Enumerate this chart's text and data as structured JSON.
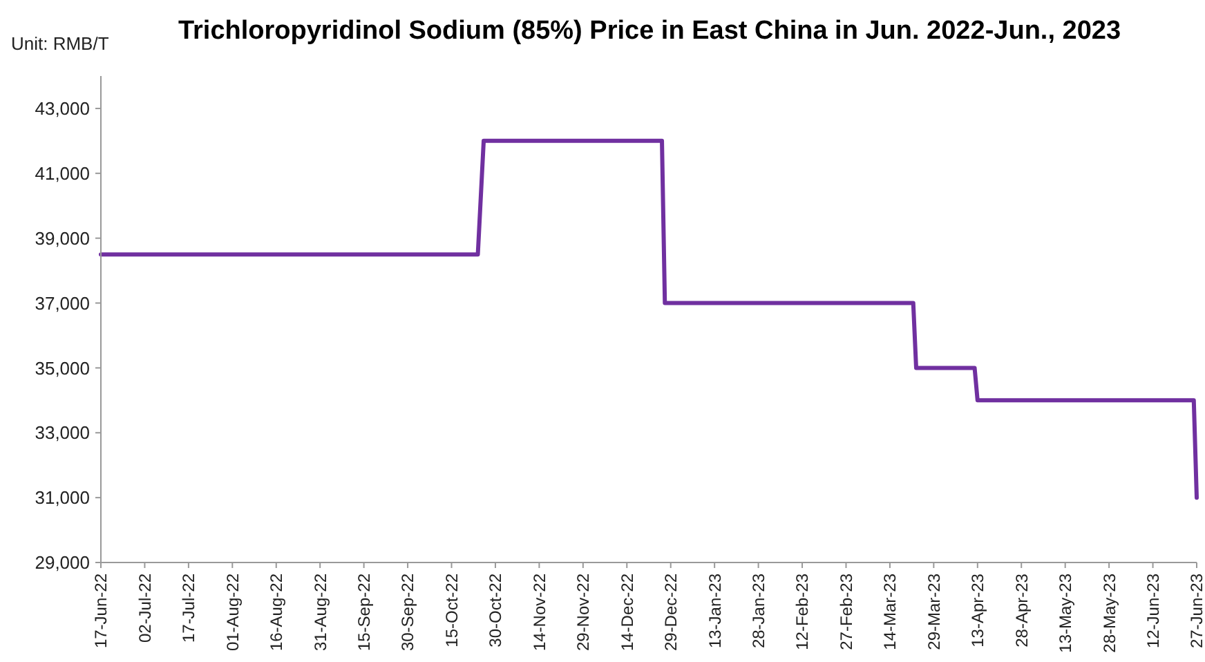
{
  "chart_data": {
    "type": "line",
    "title": "Trichloropyridinol Sodium (85%) Price in East China in Jun. 2022-Jun., 2023",
    "ylabel": "Unit: RMB/T",
    "x": [
      "2022-06-17",
      "2022-10-24",
      "2022-10-26",
      "2022-12-26",
      "2022-12-27",
      "2023-03-22",
      "2023-03-23",
      "2023-04-12",
      "2023-04-13",
      "2023-06-26",
      "2023-06-27"
    ],
    "series": [
      {
        "color": "#7030a0",
        "values": [
          38500,
          38500,
          42000,
          42000,
          37000,
          37000,
          35000,
          35000,
          34000,
          34000,
          31000
        ]
      }
    ],
    "xlim": [
      "2022-06-17",
      "2023-06-27"
    ],
    "xticks": [
      {
        "value": "2022-06-17",
        "label": "17-Jun-22"
      },
      {
        "value": "2022-07-02",
        "label": "02-Jul-22"
      },
      {
        "value": "2022-07-17",
        "label": "17-Jul-22"
      },
      {
        "value": "2022-08-01",
        "label": "01-Aug-22"
      },
      {
        "value": "2022-08-16",
        "label": "16-Aug-22"
      },
      {
        "value": "2022-08-31",
        "label": "31-Aug-22"
      },
      {
        "value": "2022-09-15",
        "label": "15-Sep-22"
      },
      {
        "value": "2022-09-30",
        "label": "30-Sep-22"
      },
      {
        "value": "2022-10-15",
        "label": "15-Oct-22"
      },
      {
        "value": "2022-10-30",
        "label": "30-Oct-22"
      },
      {
        "value": "2022-11-14",
        "label": "14-Nov-22"
      },
      {
        "value": "2022-11-29",
        "label": "29-Nov-22"
      },
      {
        "value": "2022-12-14",
        "label": "14-Dec-22"
      },
      {
        "value": "2022-12-29",
        "label": "29-Dec-22"
      },
      {
        "value": "2023-01-13",
        "label": "13-Jan-23"
      },
      {
        "value": "2023-01-28",
        "label": "28-Jan-23"
      },
      {
        "value": "2023-02-12",
        "label": "12-Feb-23"
      },
      {
        "value": "2023-02-27",
        "label": "27-Feb-23"
      },
      {
        "value": "2023-03-14",
        "label": "14-Mar-23"
      },
      {
        "value": "2023-03-29",
        "label": "29-Mar-23"
      },
      {
        "value": "2023-04-13",
        "label": "13-Apr-23"
      },
      {
        "value": "2023-04-28",
        "label": "28-Apr-23"
      },
      {
        "value": "2023-05-13",
        "label": "13-May-23"
      },
      {
        "value": "2023-05-28",
        "label": "28-May-23"
      },
      {
        "value": "2023-06-12",
        "label": "12-Jun-23"
      },
      {
        "value": "2023-06-27",
        "label": "27-Jun-23"
      }
    ],
    "ylim": [
      29000,
      44000
    ],
    "yticks": [
      {
        "value": 29000,
        "label": "29,000"
      },
      {
        "value": 31000,
        "label": "31,000"
      },
      {
        "value": 33000,
        "label": "33,000"
      },
      {
        "value": 35000,
        "label": "35,000"
      },
      {
        "value": 37000,
        "label": "37,000"
      },
      {
        "value": 39000,
        "label": "39,000"
      },
      {
        "value": 41000,
        "label": "41,000"
      },
      {
        "value": 43000,
        "label": "43,000"
      }
    ],
    "grid": false,
    "marker": "none",
    "line_style": "solid"
  }
}
